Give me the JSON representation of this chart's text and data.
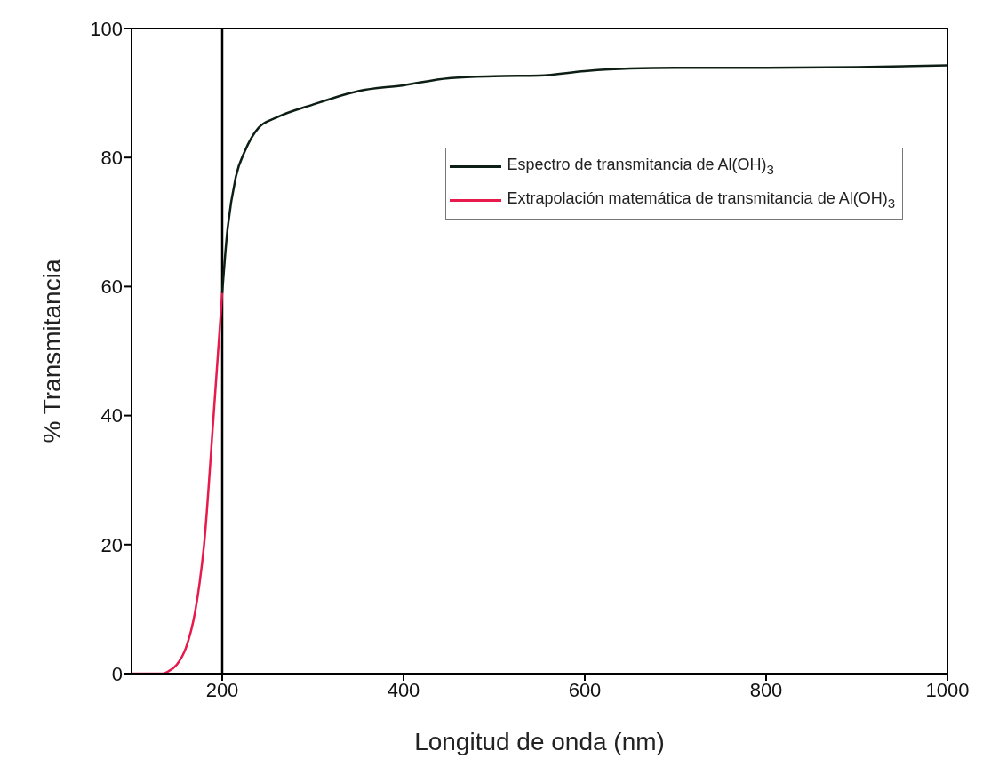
{
  "chart_data": {
    "type": "line",
    "xlabel": "Longitud de onda (nm)",
    "ylabel": "% Transmitancia",
    "xlim": [
      100,
      1000
    ],
    "xticks": [
      200,
      400,
      600,
      800,
      1000
    ],
    "ylim": [
      0,
      100
    ],
    "yticks": [
      0,
      20,
      40,
      60,
      80,
      100
    ],
    "legend": "top right",
    "marker": "none",
    "line_style": "solid",
    "ref_lines": [
      {
        "axis": "x",
        "value": 200,
        "label": null,
        "color": "#000000"
      }
    ],
    "series": [
      {
        "name": "Espectro de transmitancia de Al(OH)$_{3}$",
        "color": "#0d1f14",
        "x": [
          200,
          205,
          215,
          225,
          240,
          260,
          300,
          350,
          400,
          450,
          500,
          550,
          600,
          650,
          700,
          800,
          900,
          1000
        ],
        "values": [
          59,
          67.7,
          77,
          81,
          84.6,
          86.2,
          88.2,
          90.3,
          91.2,
          92.3,
          92.6,
          92.7,
          93.4,
          93.8,
          93.9,
          93.9,
          94.0,
          94.3
        ]
      },
      {
        "name": "Extrapolación matemática de transmitancia de Al(OH)$_{3}$",
        "color": "#e8194b",
        "x": [
          100,
          135,
          140,
          150,
          160,
          170,
          175,
          180,
          190,
          200
        ],
        "values": [
          0,
          0,
          0.3,
          1.4,
          4,
          9.5,
          14,
          20,
          39,
          59
        ]
      }
    ]
  }
}
